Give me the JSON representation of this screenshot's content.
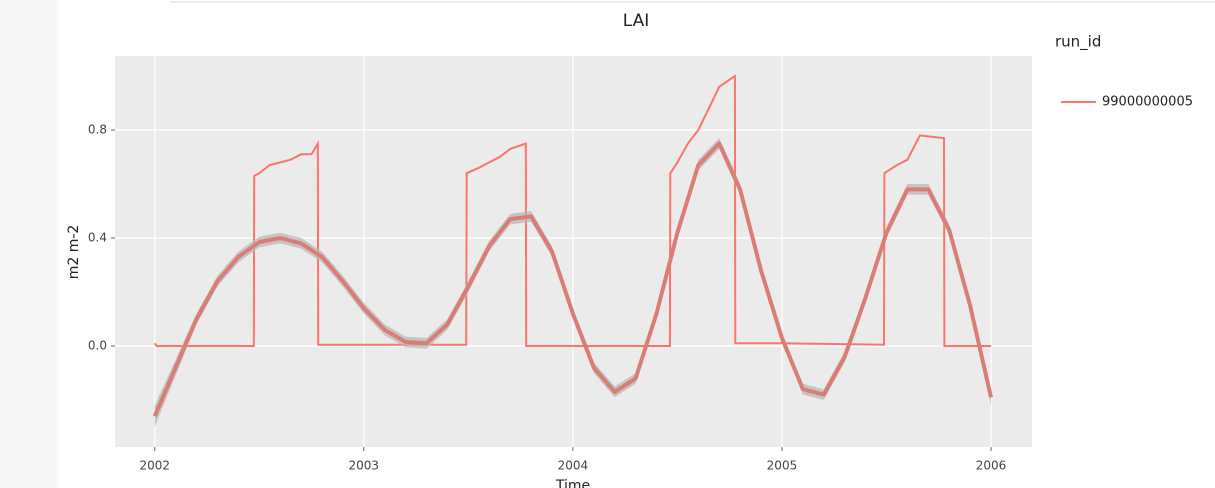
{
  "chart_data": {
    "type": "line",
    "title": "LAI",
    "x_label": "Time",
    "y_label": "m2 m-2",
    "legend_title": "run_id",
    "legend_position": "right",
    "grid": true,
    "xlim": [
      2001.81,
      2006.196
    ],
    "ylim": [
      -0.374,
      1.074
    ],
    "xticks": [
      2002,
      2003,
      2004,
      2005,
      2006
    ],
    "yticks": [
      {
        "value": 0,
        "label": "0.0"
      },
      0.4,
      0.8
    ],
    "series": [
      {
        "name": "99000000005",
        "color": "#F8766D",
        "x": [
          2002.0,
          2002.01,
          2002.474,
          2002.476,
          2002.5,
          2002.55,
          2002.6,
          2002.65,
          2002.7,
          2002.75,
          2002.78,
          2002.782,
          2003.0,
          2003.49,
          2003.492,
          2003.55,
          2003.6,
          2003.65,
          2003.7,
          2003.775,
          2003.777,
          2004.0,
          2004.464,
          2004.466,
          2004.5,
          2004.55,
          2004.6,
          2004.65,
          2004.7,
          2004.775,
          2004.777,
          2005.0,
          2005.488,
          2005.49,
          2005.55,
          2005.6,
          2005.66,
          2005.775,
          2005.777,
          2006.0
        ],
        "values": [
          0.01,
          0.0,
          0.0,
          0.63,
          0.64,
          0.67,
          0.68,
          0.69,
          0.71,
          0.71,
          0.75,
          0.005,
          0.005,
          0.005,
          0.64,
          0.66,
          0.68,
          0.7,
          0.73,
          0.75,
          0.0,
          0.0,
          0.0,
          0.64,
          0.68,
          0.75,
          0.8,
          0.88,
          0.96,
          1.0,
          0.01,
          0.01,
          0.005,
          0.64,
          0.67,
          0.69,
          0.78,
          0.77,
          0.0,
          0.0
        ]
      }
    ],
    "smooth": {
      "color": "#d97d76",
      "band_color": "#b8b8b8",
      "x": [
        2002.0,
        2002.1,
        2002.2,
        2002.3,
        2002.4,
        2002.5,
        2002.6,
        2002.7,
        2002.8,
        2002.9,
        2003.0,
        2003.1,
        2003.2,
        2003.3,
        2003.4,
        2003.5,
        2003.6,
        2003.7,
        2003.8,
        2003.9,
        2004.0,
        2004.1,
        2004.2,
        2004.3,
        2004.4,
        2004.5,
        2004.6,
        2004.7,
        2004.8,
        2004.9,
        2005.0,
        2005.1,
        2005.2,
        2005.3,
        2005.4,
        2005.5,
        2005.6,
        2005.7,
        2005.8,
        2005.9,
        2006.0
      ],
      "values": [
        -0.26,
        -0.08,
        0.1,
        0.24,
        0.33,
        0.385,
        0.4,
        0.38,
        0.33,
        0.24,
        0.14,
        0.06,
        0.015,
        0.01,
        0.08,
        0.22,
        0.37,
        0.47,
        0.48,
        0.35,
        0.12,
        -0.08,
        -0.17,
        -0.12,
        0.12,
        0.42,
        0.67,
        0.75,
        0.58,
        0.28,
        0.03,
        -0.16,
        -0.18,
        -0.04,
        0.18,
        0.42,
        0.58,
        0.58,
        0.43,
        0.15,
        -0.19
      ],
      "upper": [
        -0.22,
        -0.05,
        0.12,
        0.26,
        0.35,
        0.405,
        0.42,
        0.4,
        0.35,
        0.26,
        0.16,
        0.08,
        0.035,
        0.03,
        0.1,
        0.24,
        0.39,
        0.49,
        0.5,
        0.37,
        0.14,
        -0.06,
        -0.15,
        -0.1,
        0.14,
        0.44,
        0.69,
        0.77,
        0.6,
        0.3,
        0.05,
        -0.14,
        -0.16,
        -0.02,
        0.2,
        0.44,
        0.6,
        0.6,
        0.45,
        0.17,
        -0.16
      ],
      "lower": [
        -0.3,
        -0.11,
        0.08,
        0.22,
        0.31,
        0.365,
        0.38,
        0.36,
        0.31,
        0.22,
        0.12,
        0.04,
        -0.005,
        -0.01,
        0.06,
        0.2,
        0.35,
        0.45,
        0.46,
        0.33,
        0.1,
        -0.1,
        -0.19,
        -0.14,
        0.1,
        0.4,
        0.65,
        0.73,
        0.56,
        0.26,
        0.01,
        -0.18,
        -0.2,
        -0.06,
        0.16,
        0.4,
        0.56,
        0.56,
        0.41,
        0.13,
        -0.22
      ]
    }
  }
}
